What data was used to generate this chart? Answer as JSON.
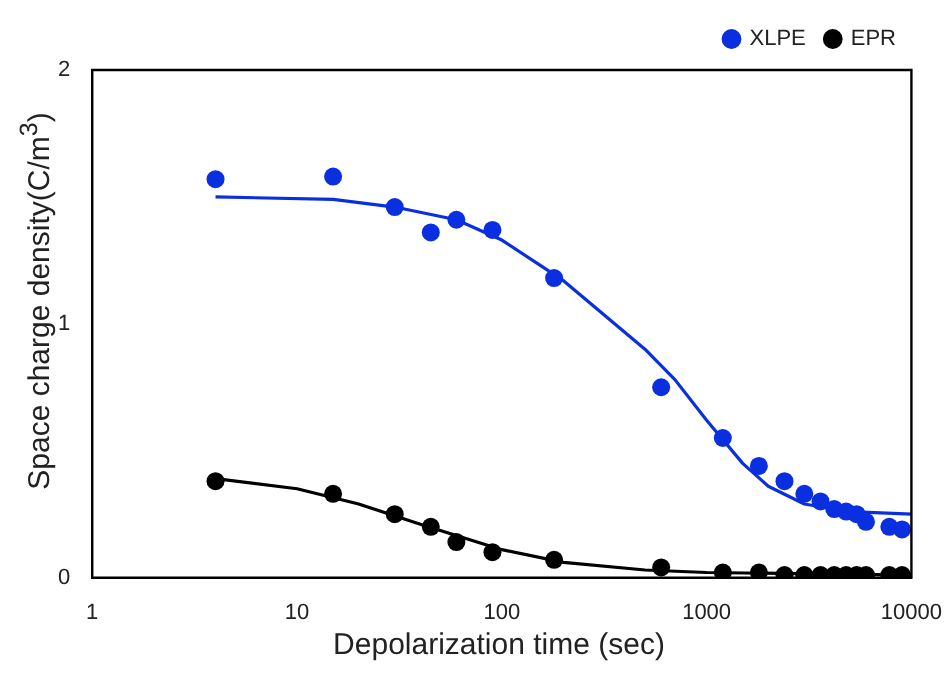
{
  "chart_data": {
    "type": "scatter",
    "xlabel": "Depolarization time (sec)",
    "ylabel": "Space charge density(C/m$^{3}$)",
    "log": "x",
    "legend": "top right",
    "marker": "circle",
    "grid": false,
    "xlim": [
      1,
      10000
    ],
    "xticks": [
      1,
      10,
      100,
      1000,
      10000
    ],
    "ylim": [
      0,
      2
    ],
    "yticks": [
      0,
      1,
      2
    ],
    "series": [
      {
        "name": "XLPE",
        "color": "#0a2fe0",
        "x": [
          4,
          15,
          30,
          45,
          60,
          90,
          180,
          600,
          1200,
          1800,
          2400,
          3000,
          3600,
          4200,
          4800,
          5400,
          6000,
          7800,
          9000
        ],
        "values": [
          1.57,
          1.58,
          1.46,
          1.36,
          1.41,
          1.37,
          1.18,
          0.75,
          0.55,
          0.44,
          0.38,
          0.33,
          0.3,
          0.27,
          0.26,
          0.25,
          0.22,
          0.2,
          0.19
        ]
      },
      {
        "name": "EPR",
        "color": "#000000",
        "x": [
          4,
          15,
          30,
          45,
          60,
          90,
          180,
          600,
          1200,
          1800,
          2400,
          3000,
          3600,
          4200,
          4800,
          5400,
          6000,
          7800,
          9000
        ],
        "values": [
          0.38,
          0.33,
          0.25,
          0.2,
          0.14,
          0.1,
          0.07,
          0.04,
          0.02,
          0.02,
          0.01,
          0.01,
          0.01,
          0.01,
          0.01,
          0.01,
          0.01,
          0.01,
          0.01
        ]
      },
      {
        "type": "line",
        "color": "#0a2fe0",
        "marker": "none",
        "x": [
          4,
          15,
          30,
          60,
          100,
          200,
          500,
          700,
          1000,
          1500,
          2000,
          3000,
          5000,
          10000
        ],
        "values": [
          1.5,
          1.49,
          1.46,
          1.41,
          1.33,
          1.17,
          0.9,
          0.78,
          0.62,
          0.45,
          0.36,
          0.29,
          0.26,
          0.25
        ]
      },
      {
        "type": "line",
        "color": "#000000",
        "marker": "none",
        "x": [
          4,
          10,
          20,
          40,
          100,
          200,
          500,
          1000,
          10000
        ],
        "values": [
          0.39,
          0.35,
          0.29,
          0.21,
          0.11,
          0.06,
          0.03,
          0.02,
          0.01
        ]
      }
    ]
  }
}
